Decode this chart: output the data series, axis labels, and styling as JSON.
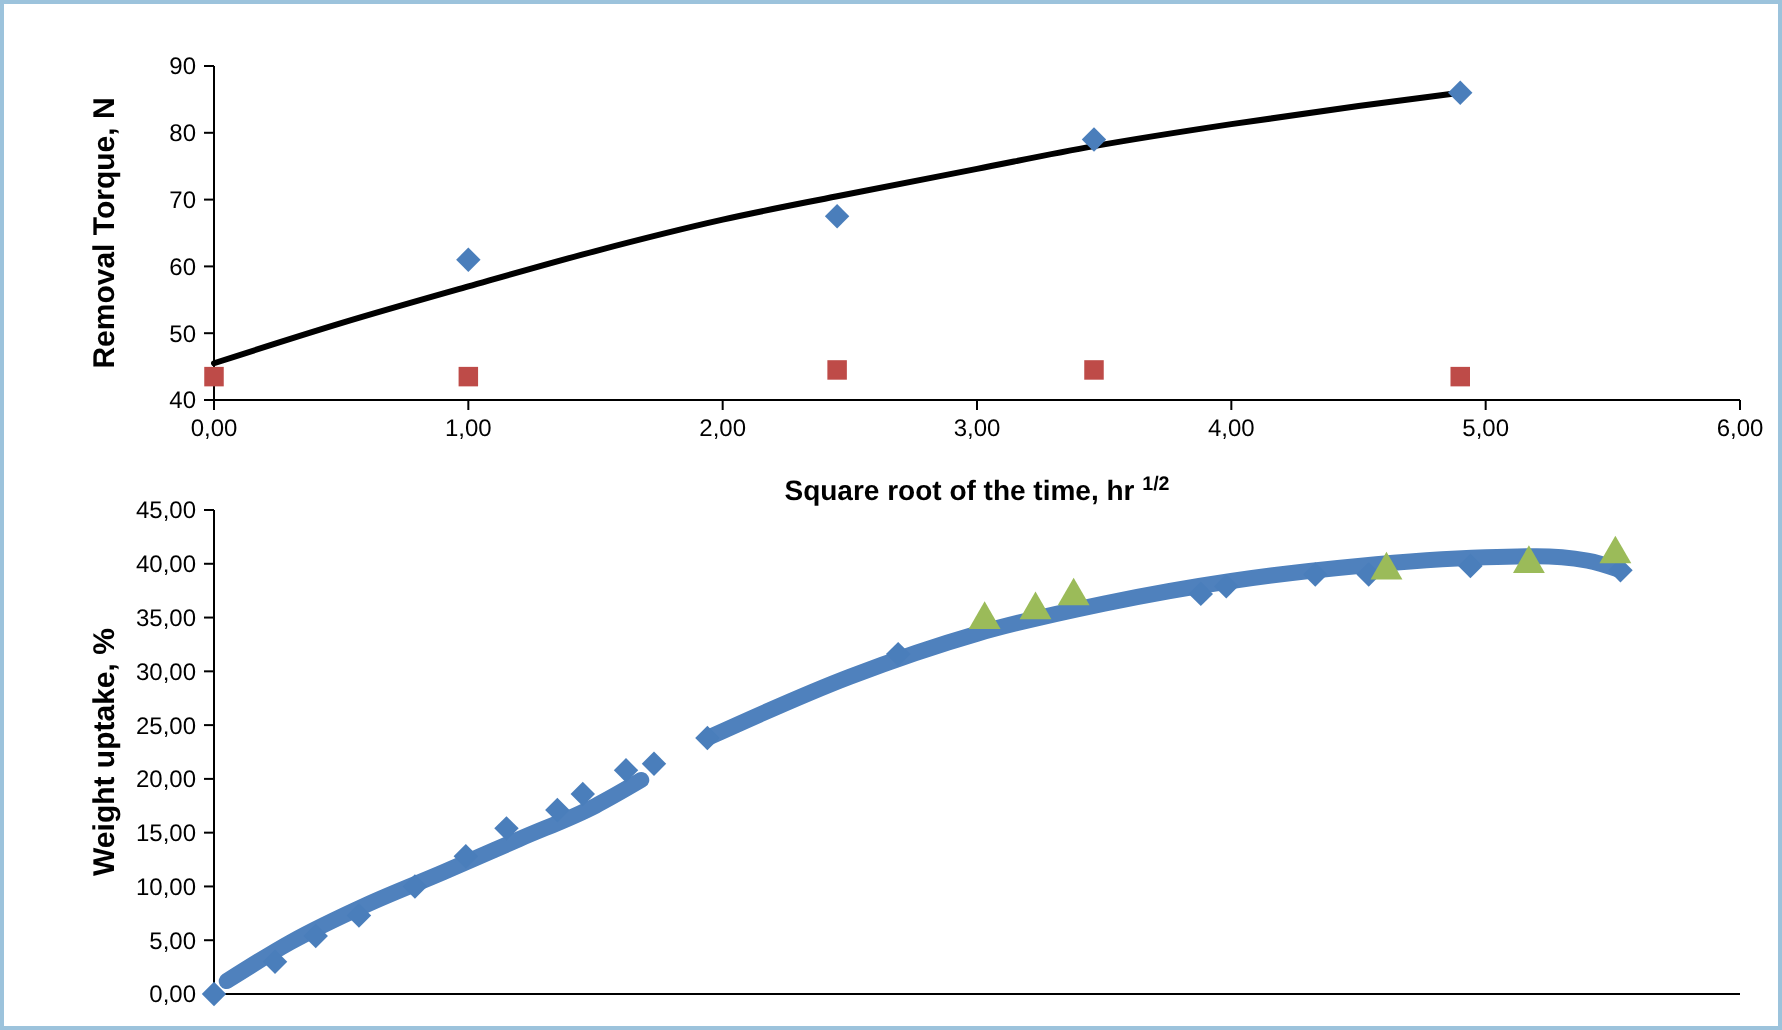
{
  "chart_data": [
    {
      "type": "scatter",
      "xlabel": "Square root of the time, hr $^{1/2}$",
      "ylabel": "Removal Torque, N",
      "xlim": [
        0,
        6
      ],
      "ylim": [
        40,
        90
      ],
      "xticks": [
        {
          "value": 0,
          "label": "0,00"
        },
        {
          "value": 1,
          "label": "1,00"
        },
        {
          "value": 2,
          "label": "2,00"
        },
        {
          "value": 3,
          "label": "3,00"
        },
        {
          "value": 4,
          "label": "4,00"
        },
        {
          "value": 5,
          "label": "5,00"
        },
        {
          "value": 6,
          "label": "6,00"
        }
      ],
      "yticks": [
        40,
        50,
        60,
        70,
        80,
        90
      ],
      "grid": false,
      "series": [
        {
          "type": "line",
          "color": "#000000",
          "marker": "none",
          "x": [
            0,
            0.5,
            1,
            1.5,
            2,
            2.45,
            3,
            3.46,
            4,
            4.5,
            4.9
          ],
          "values": [
            45.5,
            51.5,
            57,
            62.3,
            67,
            70.5,
            74.6,
            78,
            81.3,
            84,
            86
          ]
        },
        {
          "type": "scatter",
          "color": "#4a7ebb",
          "marker": "diamond",
          "x": [
            1,
            2.45,
            3.46,
            4.9
          ],
          "values": [
            61,
            67.5,
            79,
            86
          ]
        },
        {
          "type": "scatter",
          "color": "#be4b48",
          "marker": "square",
          "x": [
            0,
            1,
            2.45,
            3.46,
            4.9
          ],
          "values": [
            43.5,
            43.5,
            44.5,
            44.5,
            43.5
          ]
        }
      ]
    },
    {
      "type": "scatter",
      "ylabel": "Weight uptake, %",
      "xlim": [
        0,
        6
      ],
      "ylim": [
        0,
        45
      ],
      "tick_labels": "y",
      "yticks": [
        {
          "value": 0,
          "label": "0,00"
        },
        {
          "value": 5,
          "label": "5,00"
        },
        {
          "value": 10,
          "label": "10,00"
        },
        {
          "value": 15,
          "label": "15,00"
        },
        {
          "value": 20,
          "label": "20,00"
        },
        {
          "value": 25,
          "label": "25,00"
        },
        {
          "value": 30,
          "label": "30,00"
        },
        {
          "value": 35,
          "label": "35,00"
        },
        {
          "value": 40,
          "label": "40,00"
        },
        {
          "value": 45,
          "label": "45,00"
        }
      ],
      "grid": false,
      "series": [
        {
          "type": "scatter",
          "color": "#4a7ebb",
          "marker": "diamond",
          "x": [
            0,
            0.24,
            0.4,
            0.57,
            0.79,
            0.99,
            1.15,
            1.35,
            1.45,
            1.62,
            1.73,
            1.94,
            2.69,
            3.88,
            3.98,
            4.33,
            4.54,
            4.94,
            5.53
          ],
          "values": [
            0,
            3,
            5.4,
            7.3,
            10,
            12.8,
            15.4,
            17.1,
            18.6,
            20.8,
            21.4,
            23.8,
            31.6,
            37.2,
            37.9,
            39,
            39,
            39.8,
            39.4
          ]
        },
        {
          "type": "scatter",
          "color": "#9bbb59",
          "marker": "triangle",
          "x": [
            3.03,
            3.23,
            3.38,
            4.61,
            5.17,
            5.51
          ],
          "values": [
            34.8,
            35.7,
            37,
            39.4,
            40,
            40.9
          ]
        },
        {
          "type": "line",
          "color": "#4f81bd",
          "marker": "none",
          "x": [
            0.05,
            0.3,
            0.6,
            0.9,
            1.2,
            1.5,
            1.68
          ],
          "values": [
            1.2,
            4.8,
            8.3,
            11.3,
            14.4,
            17.5,
            19.9
          ]
        },
        {
          "type": "line",
          "color": "#4f81bd",
          "marker": "none",
          "x": [
            1.94,
            2.5,
            3,
            3.5,
            4,
            4.5,
            5,
            5.2,
            5.4,
            5.53
          ],
          "values": [
            23.8,
            29.5,
            33.5,
            36.3,
            38.4,
            39.8,
            40.6,
            40.7,
            40.3,
            39.4
          ]
        }
      ]
    }
  ]
}
